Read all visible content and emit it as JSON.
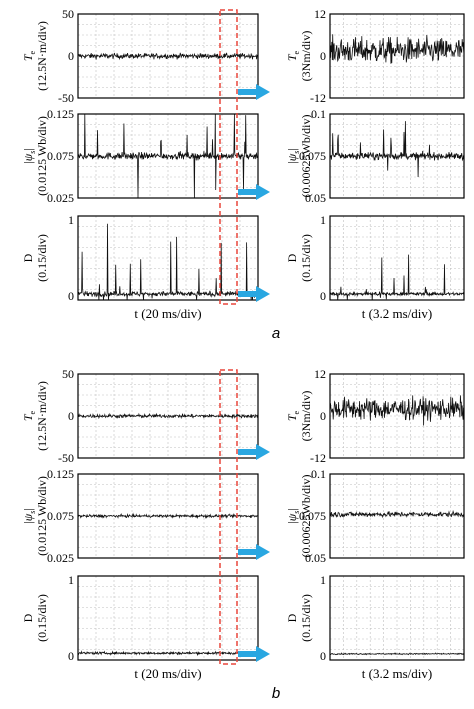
{
  "colors": {
    "signal": "#111111",
    "grid": "#bfbfbf",
    "dash_box": "#e8463c",
    "arrow": "#29a7e1"
  },
  "panels": [
    {
      "label": "a",
      "xlabel_left": "t (20 ms/div)",
      "xlabel_right": "t (3.2 ms/div)",
      "rows": [
        {
          "left": {
            "ylabel_sym": "Te",
            "ylabel_unit": "(12.5N·m/div)",
            "yticks": [
              "50",
              "0",
              "-50"
            ],
            "ylim": [
              -50,
              50
            ],
            "trace": {
              "mean": 0,
              "noise": 3,
              "spikes": 0
            }
          },
          "right": {
            "ylabel_sym": "Te",
            "ylabel_unit": "(3Nm/div)",
            "yticks": [
              "12",
              "0",
              "-12"
            ],
            "ylim": [
              -12,
              12
            ],
            "trace": {
              "mean": 1.5,
              "noise": 3.5,
              "spikes": 0
            }
          }
        },
        {
          "left": {
            "ylabel_sym": "|ψs|",
            "ylabel_unit": "(0.0125 Wb/div)",
            "yticks": [
              "0.125",
              "0.075",
              "0.025"
            ],
            "ylim": [
              0.025,
              0.125
            ],
            "trace": {
              "mean": 0.075,
              "noise": 0.004,
              "spikes": 0.12
            }
          },
          "right": {
            "ylabel_sym": "|ψs|",
            "ylabel_unit": "(0.00625Wb/div)",
            "yticks": [
              "0.1",
              "0.075",
              "0.05"
            ],
            "ylim": [
              0.05,
              0.1
            ],
            "trace": {
              "mean": 0.075,
              "noise": 0.002,
              "spikes": 0.04
            }
          }
        },
        {
          "left": {
            "ylabel_sym": "D",
            "ylabel_unit": "(0.15/div)",
            "yticks": [
              "1",
              "0"
            ],
            "ylim": [
              -0.05,
              1.05
            ],
            "trace": {
              "mean": 0.03,
              "noise": 0.03,
              "spikes": 0.22
            }
          },
          "right": {
            "ylabel_sym": "D",
            "ylabel_unit": "(0.15/div)",
            "yticks": [
              "1",
              "0"
            ],
            "ylim": [
              -0.05,
              1.05
            ],
            "trace": {
              "mean": 0.03,
              "noise": 0.02,
              "spikes": 0.08
            }
          }
        }
      ]
    },
    {
      "label": "b",
      "xlabel_left": "t (20 ms/div)",
      "xlabel_right": "t (3.2 ms/div)",
      "rows": [
        {
          "left": {
            "ylabel_sym": "Te",
            "ylabel_unit": "(12.5N·m/div)",
            "yticks": [
              "50",
              "0",
              "-50"
            ],
            "ylim": [
              -50,
              50
            ],
            "trace": {
              "mean": 0,
              "noise": 2,
              "spikes": 0
            }
          },
          "right": {
            "ylabel_sym": "Te",
            "ylabel_unit": "(3Nm/div)",
            "yticks": [
              "12",
              "0",
              "-12"
            ],
            "ylim": [
              -12,
              12
            ],
            "trace": {
              "mean": 2,
              "noise": 3,
              "spikes": 0
            }
          }
        },
        {
          "left": {
            "ylabel_sym": "|ψs|",
            "ylabel_unit": "(0.0125 Wb/div)",
            "yticks": [
              "0.125",
              "0.075",
              "0.025"
            ],
            "ylim": [
              0.025,
              0.125
            ],
            "trace": {
              "mean": 0.075,
              "noise": 0.0015,
              "spikes": 0
            }
          },
          "right": {
            "ylabel_sym": "|ψs|",
            "ylabel_unit": "(0.00625Wb/div)",
            "yticks": [
              "0.1",
              "0.075",
              "0.05"
            ],
            "ylim": [
              0.05,
              0.1
            ],
            "trace": {
              "mean": 0.076,
              "noise": 0.0015,
              "spikes": 0
            }
          }
        },
        {
          "left": {
            "ylabel_sym": "D",
            "ylabel_unit": "(0.15/div)",
            "yticks": [
              "1",
              "0"
            ],
            "ylim": [
              -0.05,
              1.05
            ],
            "trace": {
              "mean": 0.04,
              "noise": 0.015,
              "spikes": 0
            }
          },
          "right": {
            "ylabel_sym": "D",
            "ylabel_unit": "(0.15/div)",
            "yticks": [
              "1",
              "0"
            ],
            "ylim": [
              -0.05,
              1.05
            ],
            "trace": {
              "mean": 0.03,
              "noise": 0.008,
              "spikes": 0
            }
          }
        }
      ]
    }
  ],
  "chart_data": [
    {
      "type": "line",
      "panel": "a",
      "position": "row 1 left",
      "title": "",
      "ylabel": "Te (12.5N·m/div)",
      "xlabel": "t (20 ms/div)",
      "ylim": [
        -50,
        50
      ],
      "yticks": [
        "50",
        "0",
        "-50"
      ],
      "grid": true,
      "series": [
        {
          "summary": {
            "mean": 0,
            "band": [
              -4,
              4
            ]
          }
        }
      ]
    },
    {
      "type": "line",
      "panel": "a",
      "position": "row 1 right",
      "title": "",
      "ylabel": "Te (3Nm/div)",
      "xlabel": "t (3.2 ms/div)",
      "ylim": [
        -12,
        12
      ],
      "yticks": [
        "12",
        "0",
        "-12"
      ],
      "grid": true,
      "series": [
        {
          "summary": {
            "mean": 1.5,
            "band": [
              -5,
              8
            ]
          }
        }
      ]
    },
    {
      "type": "line",
      "panel": "a",
      "position": "row 2 left",
      "title": "",
      "ylabel": "|ψs| (0.0125 Wb/div)",
      "xlabel": "t (20 ms/div)",
      "ylim": [
        0.025,
        0.125
      ],
      "yticks": [
        "0.125",
        "0.075",
        "0.025"
      ],
      "grid": true,
      "series": [
        {
          "summary": {
            "mean": 0.075,
            "band": [
              0.055,
              0.095
            ]
          }
        }
      ]
    },
    {
      "type": "line",
      "panel": "a",
      "position": "row 2 right",
      "title": "",
      "ylabel": "|ψs| (0.00625Wb/div)",
      "xlabel": "t (3.2 ms/div)",
      "ylim": [
        0.05,
        0.1
      ],
      "yticks": [
        "0.1",
        "0.075",
        "0.05"
      ],
      "grid": true,
      "series": [
        {
          "summary": {
            "mean": 0.075,
            "band": [
              0.058,
              0.095
            ]
          }
        }
      ]
    },
    {
      "type": "line",
      "panel": "a",
      "position": "row 3 left",
      "title": "",
      "ylabel": "D (0.15/div)",
      "xlabel": "t (20 ms/div)",
      "ylim": [
        -0.05,
        1.05
      ],
      "yticks": [
        "1",
        "0"
      ],
      "grid": true,
      "series": [
        {
          "summary": {
            "mean": 0.03,
            "band": [
              0,
              1
            ]
          }
        }
      ]
    },
    {
      "type": "line",
      "panel": "a",
      "position": "row 3 right",
      "title": "",
      "ylabel": "D (0.15/div)",
      "xlabel": "t (3.2 ms/div)",
      "ylim": [
        -0.05,
        1.05
      ],
      "yticks": [
        "1",
        "0"
      ],
      "grid": true,
      "series": [
        {
          "summary": {
            "mean": 0.03,
            "band": [
              0,
              0.9
            ]
          }
        }
      ]
    },
    {
      "type": "line",
      "panel": "b",
      "position": "row 1 left",
      "title": "",
      "ylabel": "Te (12.5N·m/div)",
      "xlabel": "t (20 ms/div)",
      "ylim": [
        -50,
        50
      ],
      "yticks": [
        "50",
        "0",
        "-50"
      ],
      "grid": true,
      "series": [
        {
          "summary": {
            "mean": 0,
            "band": [
              -3,
              3
            ]
          }
        }
      ]
    },
    {
      "type": "line",
      "panel": "b",
      "position": "row 1 right",
      "title": "",
      "ylabel": "Te (3Nm/div)",
      "xlabel": "t (3.2 ms/div)",
      "ylim": [
        -12,
        12
      ],
      "yticks": [
        "12",
        "0",
        "-12"
      ],
      "grid": true,
      "series": [
        {
          "summary": {
            "mean": 2,
            "band": [
              -4,
              8
            ]
          }
        }
      ]
    },
    {
      "type": "line",
      "panel": "b",
      "position": "row 2 left",
      "title": "",
      "ylabel": "|ψs| (0.0125 Wb/div)",
      "xlabel": "t (20 ms/div)",
      "ylim": [
        0.025,
        0.125
      ],
      "yticks": [
        "0.125",
        "0.075",
        "0.025"
      ],
      "grid": true,
      "series": [
        {
          "summary": {
            "mean": 0.075,
            "band": [
              0.072,
              0.078
            ]
          }
        }
      ]
    },
    {
      "type": "line",
      "panel": "b",
      "position": "row 2 right",
      "title": "",
      "ylabel": "|ψs| (0.00625Wb/div)",
      "xlabel": "t (3.2 ms/div)",
      "ylim": [
        0.05,
        0.1
      ],
      "yticks": [
        "0.1",
        "0.075",
        "0.05"
      ],
      "grid": true,
      "series": [
        {
          "summary": {
            "mean": 0.076,
            "band": [
              0.072,
              0.08
            ]
          }
        }
      ]
    },
    {
      "type": "line",
      "panel": "b",
      "position": "row 3 left",
      "title": "",
      "ylabel": "D (0.15/div)",
      "xlabel": "t (20 ms/div)",
      "ylim": [
        -0.05,
        1.05
      ],
      "yticks": [
        "1",
        "0"
      ],
      "grid": true,
      "series": [
        {
          "summary": {
            "mean": 0.04,
            "band": [
              0.01,
              0.07
            ]
          }
        }
      ]
    },
    {
      "type": "line",
      "panel": "b",
      "position": "row 3 right",
      "title": "",
      "ylabel": "D (0.15/div)",
      "xlabel": "t (3.2 ms/div)",
      "ylim": [
        -0.05,
        1.05
      ],
      "yticks": [
        "1",
        "0"
      ],
      "grid": true,
      "series": [
        {
          "summary": {
            "mean": 0.03,
            "band": [
              0.01,
              0.05
            ]
          }
        }
      ]
    }
  ]
}
